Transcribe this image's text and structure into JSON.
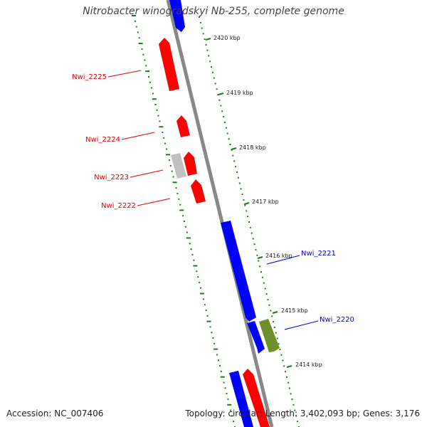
{
  "title": "Nitrobacter winogradskyi Nb-255, complete genome",
  "footer": {
    "accession": "Accession: NC_007406",
    "summary": "Topology: circular; Length: 3,402,093 bp; Genes: 3,176"
  },
  "colors": {
    "forward_gene": "#ff0000",
    "reverse_gene": "#0000ff",
    "rna_gene": "#c0c0c0",
    "pseudo_gene": "#6f8f2f",
    "backbone": "#888888",
    "ticks": "#1a7a1a",
    "left_label": "#e00000",
    "right_label": "#0000cc"
  },
  "kbp_ticks": [
    {
      "label": "2420 kbp"
    },
    {
      "label": "2419 kbp"
    },
    {
      "label": "2418 kbp"
    },
    {
      "label": "2417 kbp"
    },
    {
      "label": "2416 kbp"
    },
    {
      "label": "2415 kbp"
    },
    {
      "label": "2414 kbp"
    }
  ],
  "gene_labels": {
    "left": [
      "Nwi_2225",
      "Nwi_2224",
      "Nwi_2223",
      "Nwi_2222"
    ],
    "right": [
      "Nwi_2221",
      "Nwi_2220"
    ]
  }
}
